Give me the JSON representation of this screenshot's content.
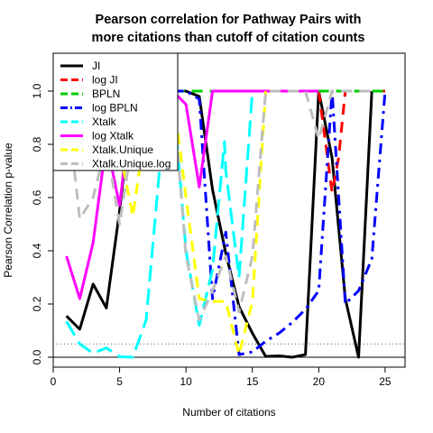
{
  "chart_data": {
    "type": "line",
    "title_lines": [
      "Pearson correlation for Pathway Pairs with",
      "more citations than cutoff of citation counts"
    ],
    "xlabel": "Number of citations",
    "ylabel": "Pearson Correlation p-value",
    "xlim": [
      0,
      26.5
    ],
    "ylim": [
      -0.05,
      1.15
    ],
    "xticks": [
      0,
      5,
      10,
      15,
      20,
      25
    ],
    "yticks": [
      0.0,
      0.2,
      0.4,
      0.6,
      0.8,
      1.0
    ],
    "ytick_labels": [
      "0.0",
      "0.2",
      "0.4",
      "0.6",
      "0.8",
      "1.0"
    ],
    "reference_lines": [
      {
        "y": 0.05,
        "style": "dotted",
        "color": "#555555"
      },
      {
        "y": 0.0,
        "style": "solid",
        "color": "#000000"
      }
    ],
    "legend_position": "top-left",
    "series": [
      {
        "name": "JI",
        "color": "#000000",
        "dash": "solid",
        "x": [
          1,
          2,
          3,
          4,
          5,
          6,
          7,
          8,
          9,
          10,
          11,
          12,
          13,
          14,
          15,
          16,
          17,
          18,
          19,
          20,
          21,
          22,
          23,
          24
        ],
        "y": [
          0.155,
          0.105,
          0.275,
          0.185,
          0.55,
          1.0,
          1.0,
          1.0,
          1.0,
          1.0,
          0.98,
          0.63,
          0.39,
          0.19,
          0.09,
          0.003,
          0.005,
          0.0,
          0.01,
          1.0,
          0.75,
          0.22,
          0.0,
          1.0
        ]
      },
      {
        "name": "log JI",
        "color": "#ff0000",
        "dash": "dashed",
        "x": [
          20,
          21,
          21.5,
          22,
          23,
          24,
          25
        ],
        "y": [
          1.0,
          0.62,
          0.75,
          1.0,
          1.0,
          1.0,
          1.0
        ]
      },
      {
        "name": "BPLN",
        "color": "#00cc00",
        "dash": "dashed",
        "x": [
          5,
          6,
          7,
          8,
          9,
          10,
          11,
          12,
          13,
          14,
          15,
          16,
          17,
          18,
          19,
          20,
          21,
          22,
          23,
          24,
          25
        ],
        "y": [
          1.0,
          1.0,
          1.0,
          1.0,
          1.0,
          1.0,
          1.0,
          1.0,
          1.0,
          1.0,
          1.0,
          1.0,
          1.0,
          1.0,
          1.0,
          1.0,
          1.0,
          1.0,
          1.0,
          1.0,
          1.0
        ]
      },
      {
        "name": "log BPLN",
        "color": "#0000ff",
        "dash": "dashdot",
        "x": [
          9,
          10,
          11,
          12,
          13,
          14,
          15,
          16,
          17,
          18,
          19,
          20,
          21,
          22,
          23,
          24,
          25
        ],
        "y": [
          1.0,
          1.0,
          0.97,
          0.22,
          0.47,
          0.01,
          0.02,
          0.06,
          0.09,
          0.13,
          0.18,
          0.25,
          1.0,
          0.2,
          0.25,
          0.37,
          1.0
        ]
      },
      {
        "name": "Xtalk",
        "color": "#00ffff",
        "dash": "longdash",
        "x": [
          1,
          2,
          3,
          4,
          5,
          6,
          7,
          8,
          9,
          10,
          11,
          12,
          12.9,
          13,
          14,
          15,
          16
        ],
        "y": [
          0.135,
          0.05,
          0.015,
          0.035,
          0.002,
          0.0,
          0.14,
          0.7,
          1.0,
          0.4,
          0.12,
          0.33,
          0.81,
          0.7,
          0.3,
          1.0,
          1.0
        ]
      },
      {
        "name": "log Xtalk",
        "color": "#ff00ff",
        "dash": "solid",
        "x": [
          1,
          2,
          3,
          4,
          5,
          6,
          7,
          8,
          9,
          10,
          11,
          12,
          13,
          14,
          15,
          16,
          17,
          18,
          19,
          20
        ],
        "y": [
          0.38,
          0.22,
          0.43,
          0.81,
          0.57,
          1.0,
          1.0,
          1.0,
          1.0,
          0.95,
          0.64,
          1.0,
          1.0,
          1.0,
          1.0,
          1.0,
          1.0,
          1.0,
          1.0,
          1.0
        ]
      },
      {
        "name": "Xtalk.Unique",
        "color": "#ffff00",
        "dash": "dashed",
        "x": [
          5,
          6,
          7,
          8,
          9,
          10,
          11,
          12,
          13,
          14,
          15,
          16
        ],
        "y": [
          0.78,
          0.53,
          0.88,
          1.0,
          1.0,
          0.6,
          0.22,
          0.21,
          0.21,
          0.01,
          0.21,
          1.0
        ]
      },
      {
        "name": "Xtalk.Unique.log",
        "color": "#bebebe",
        "dash": "dashed",
        "x": [
          1,
          2,
          3,
          4,
          5,
          6,
          7,
          8,
          9,
          10,
          11,
          12,
          13,
          14,
          15,
          16,
          17,
          18,
          19,
          20,
          21,
          22,
          23,
          24
        ],
        "y": [
          0.97,
          0.52,
          0.6,
          0.8,
          0.5,
          0.83,
          1.0,
          1.0,
          1.0,
          0.38,
          0.14,
          0.25,
          0.38,
          0.17,
          0.38,
          1.0,
          1.0,
          1.0,
          1.0,
          0.82,
          1.0,
          1.0,
          1.0,
          1.0
        ]
      }
    ]
  }
}
